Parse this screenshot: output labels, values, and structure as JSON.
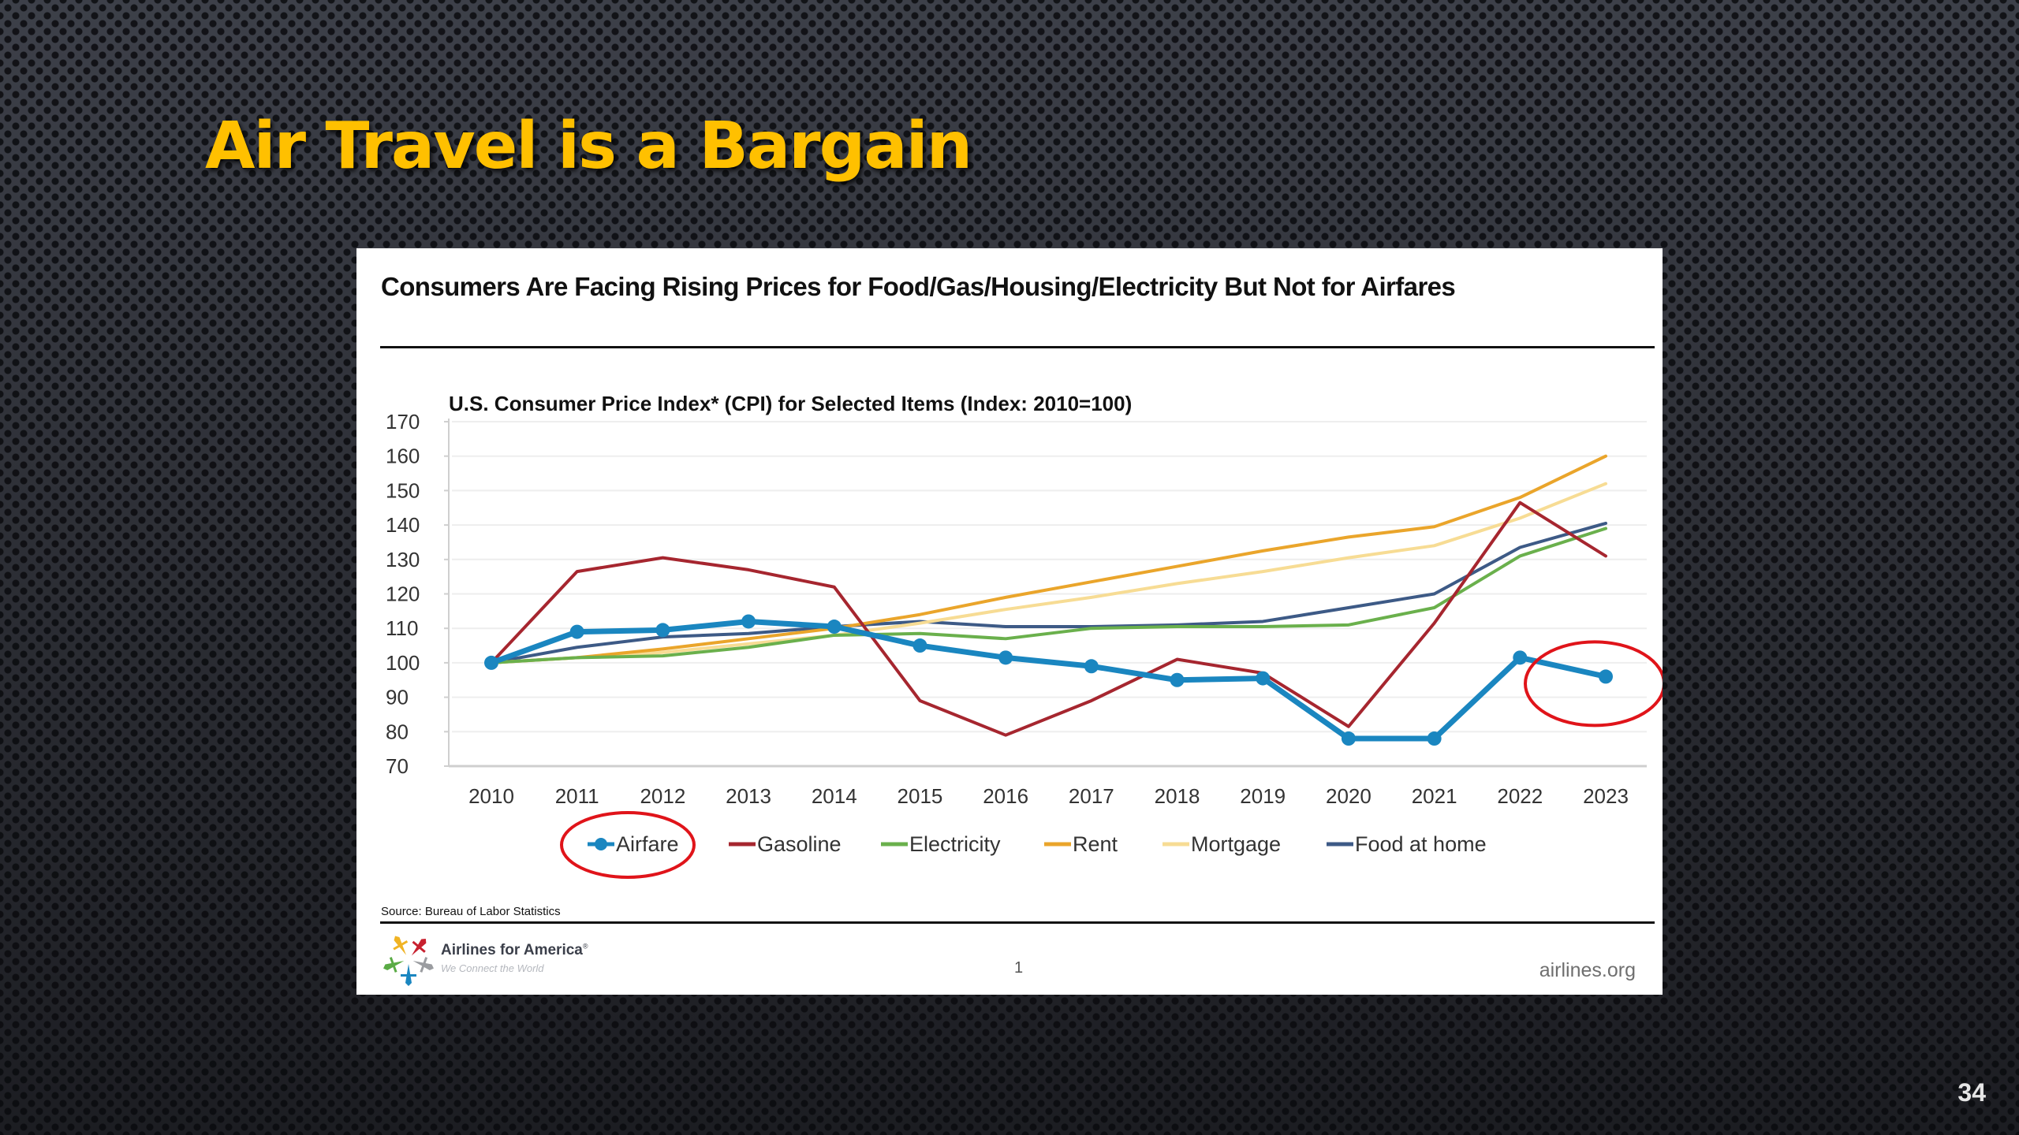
{
  "slide": {
    "title": "Air Travel is a Bargain",
    "page_number": "34",
    "title_color": "#ffc000"
  },
  "card": {
    "heading": "Consumers Are Facing Rising Prices for Food/Gas/Housing/Electricity But Not for Airfares",
    "source": "Source: Bureau of Labor Statistics",
    "footer": {
      "logo_name": "Airlines for America",
      "logo_registered": "®",
      "logo_tagline": "We Connect the World",
      "page": "1",
      "url": "airlines.org"
    }
  },
  "chart_data": {
    "type": "line",
    "title": "U.S. Consumer Price Index* (CPI) for Selected Items (Index: 2010=100)",
    "xlabel": "",
    "ylabel": "",
    "x": [
      "2010",
      "2011",
      "2012",
      "2013",
      "2014",
      "2015",
      "2016",
      "2017",
      "2018",
      "2019",
      "2020",
      "2021",
      "2022",
      "2023"
    ],
    "ylim": [
      70,
      170
    ],
    "yticks": [
      170,
      160,
      150,
      140,
      130,
      120,
      110,
      100,
      90,
      80,
      70
    ],
    "grid": true,
    "legend_position": "bottom",
    "series": [
      {
        "name": "Airfare",
        "color": "#1a86c0",
        "markers": true,
        "values": [
          100,
          109,
          109.5,
          112,
          110.5,
          105,
          101.5,
          99,
          95,
          95.5,
          78,
          78,
          101.5,
          96
        ]
      },
      {
        "name": "Gasoline",
        "color": "#a6262f",
        "markers": false,
        "values": [
          100,
          126.5,
          130.5,
          127,
          122,
          89,
          79,
          89,
          101,
          97,
          81.5,
          111.5,
          146.5,
          131
        ]
      },
      {
        "name": "Electricity",
        "color": "#6ab04c",
        "markers": false,
        "values": [
          100,
          101.5,
          102,
          104.5,
          108,
          108.5,
          107,
          110,
          110.5,
          110.5,
          111,
          116,
          131,
          139
        ]
      },
      {
        "name": "Rent",
        "color": "#eaa52b",
        "markers": false,
        "values": [
          100,
          101.5,
          104,
          107,
          110,
          114,
          119,
          123.5,
          128,
          132.5,
          136.5,
          139.5,
          148,
          160
        ]
      },
      {
        "name": "Mortgage",
        "color": "#f7dc94",
        "markers": false,
        "values": [
          100,
          101.5,
          103,
          105.5,
          108,
          111.5,
          115.5,
          119,
          123,
          126.5,
          130.5,
          134,
          142,
          152
        ]
      },
      {
        "name": "Food at home",
        "color": "#3d5a86",
        "markers": false,
        "values": [
          100,
          104.5,
          107.5,
          108.5,
          110.5,
          112,
          110.5,
          110.5,
          111,
          112,
          116,
          120,
          133.5,
          140.5
        ]
      }
    ],
    "annotations": [
      {
        "type": "circle",
        "target": "Airfare 2023 point",
        "color": "#e0141a"
      },
      {
        "type": "circle",
        "target": "Airfare legend entry",
        "color": "#e0141a"
      }
    ]
  }
}
